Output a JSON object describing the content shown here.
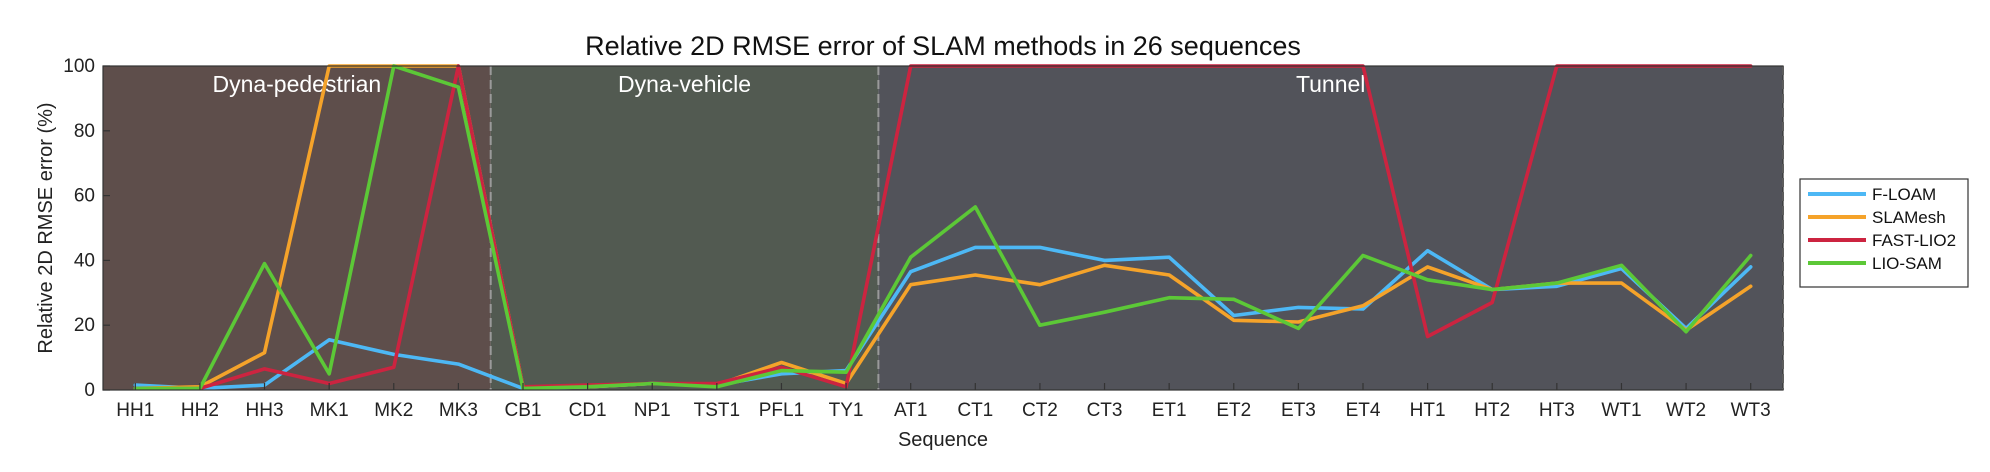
{
  "chart_data": {
    "type": "line",
    "title": "Relative 2D RMSE error of SLAM methods in 26 sequences",
    "xlabel": "Sequence",
    "ylabel": "Relative 2D RMSE error  (%)",
    "ylim": [
      0,
      100
    ],
    "yticks": [
      0,
      20,
      40,
      60,
      80,
      100
    ],
    "categories": [
      "HH1",
      "HH2",
      "HH3",
      "MK1",
      "MK2",
      "MK3",
      "CB1",
      "CD1",
      "NP1",
      "TST1",
      "PFL1",
      "TY1",
      "AT1",
      "CT1",
      "CT2",
      "CT3",
      "ET1",
      "ET2",
      "ET3",
      "ET4",
      "HT1",
      "HT2",
      "HT3",
      "WT1",
      "WT2",
      "WT3"
    ],
    "grid": false,
    "legend_position": "right",
    "regions": [
      {
        "label": "Dyna-pedestrian",
        "from": "HH1",
        "to": "MK3",
        "color": "#5e4e4b"
      },
      {
        "label": "Dyna-vehicle",
        "from": "CB1",
        "to": "TY1",
        "color": "#525a51"
      },
      {
        "label": "Tunnel",
        "from": "AT1",
        "to": "WT3",
        "color": "#52535a"
      }
    ],
    "series": [
      {
        "name": "F-LOAM",
        "color": "#4db8f5",
        "values": [
          1.5,
          0.5,
          1.5,
          15.5,
          11,
          8,
          0.5,
          1,
          2,
          1.5,
          5,
          6,
          36.5,
          44,
          44,
          40,
          41,
          23,
          25.5,
          25,
          43,
          31,
          32,
          37.5,
          19,
          38
        ]
      },
      {
        "name": "SLAMesh",
        "color": "#f5a32a",
        "values": [
          0.5,
          1,
          11.5,
          100,
          100,
          100,
          1,
          1,
          2,
          1.5,
          8.5,
          2,
          32.5,
          35.5,
          32.5,
          38.5,
          35.5,
          21.5,
          21,
          26,
          38,
          31,
          33,
          33,
          18.5,
          32
        ]
      },
      {
        "name": "FAST-LIO2",
        "color": "#cc2440",
        "values": [
          0.5,
          0.5,
          6.5,
          2,
          7,
          100,
          1,
          1.5,
          2,
          2,
          7,
          1,
          100,
          100,
          100,
          100,
          100,
          100,
          100,
          100,
          16.5,
          27,
          100,
          100,
          100,
          100
        ]
      },
      {
        "name": "LIO-SAM",
        "color": "#5cc837",
        "values": [
          0.5,
          0.5,
          39,
          5,
          100,
          93.5,
          0.5,
          1,
          2,
          1,
          6,
          5.5,
          41,
          56.5,
          20,
          24,
          28.5,
          28,
          19,
          41.5,
          34,
          31,
          33,
          38.5,
          18,
          41.5
        ]
      }
    ]
  }
}
